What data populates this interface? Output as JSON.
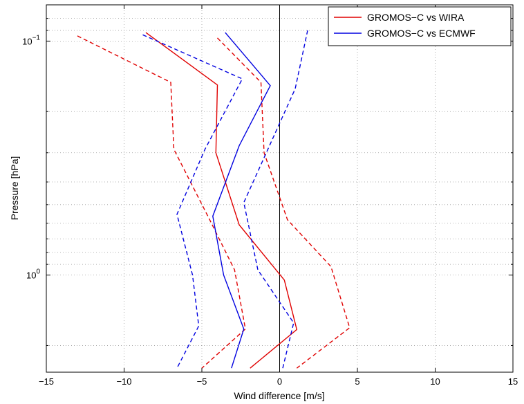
{
  "chart_data": {
    "type": "line",
    "xlabel": "Wind difference [m/s]",
    "ylabel": "Pressure [hPa]",
    "xlim": [
      -15,
      15
    ],
    "xticks": [
      -15,
      -10,
      -5,
      0,
      5,
      10,
      15
    ],
    "ylim": [
      0.07,
      2.6
    ],
    "yscale": "log",
    "y_direction": "reversed",
    "ytick_labels": [
      {
        "value": 0.1,
        "base": "10",
        "exp": "−1"
      },
      {
        "value": 1,
        "base": "10",
        "exp": "0"
      }
    ],
    "grid": true,
    "grid_style": "dotted",
    "zero_line": true,
    "legend": {
      "position": "top-right",
      "entries": [
        {
          "label": "GROMOS−C vs WIRA",
          "color": "#e00000"
        },
        {
          "label": "GROMOS−C vs ECMWF",
          "color": "#0000e0"
        }
      ]
    },
    "series": [
      {
        "name": "GROMOS−C vs WIRA",
        "role": "mean",
        "color": "#e00000",
        "style": "solid",
        "points": [
          [
            -8.6,
            0.092
          ],
          [
            -4.0,
            0.154
          ],
          [
            -4.1,
            0.3
          ],
          [
            -2.6,
            0.61
          ],
          [
            0.3,
            1.05
          ],
          [
            1.1,
            1.71
          ],
          [
            -1.9,
            2.5
          ]
        ]
      },
      {
        "name": "",
        "role": "lower",
        "color": "#e00000",
        "style": "dashed",
        "points": [
          [
            -13.0,
            0.095
          ],
          [
            -7.0,
            0.15
          ],
          [
            -6.8,
            0.29
          ],
          [
            -4.5,
            0.58
          ],
          [
            -2.9,
            0.95
          ],
          [
            -2.2,
            1.7
          ],
          [
            -5.0,
            2.5
          ]
        ]
      },
      {
        "name": "",
        "role": "upper",
        "color": "#e00000",
        "style": "dashed",
        "points": [
          [
            -4.0,
            0.097
          ],
          [
            -1.2,
            0.15
          ],
          [
            -1.0,
            0.3
          ],
          [
            0.5,
            0.58
          ],
          [
            3.3,
            0.92
          ],
          [
            4.5,
            1.68
          ],
          [
            1.1,
            2.5
          ]
        ]
      },
      {
        "name": "GROMOS−C vs ECMWF",
        "role": "mean",
        "color": "#0000e0",
        "style": "solid",
        "points": [
          [
            -3.5,
            0.092
          ],
          [
            -0.6,
            0.155
          ],
          [
            -2.6,
            0.28
          ],
          [
            -4.3,
            0.56
          ],
          [
            -3.6,
            1.0
          ],
          [
            -2.3,
            1.7
          ],
          [
            -3.1,
            2.5
          ]
        ]
      },
      {
        "name": "",
        "role": "lower",
        "color": "#0000e0",
        "style": "dashed",
        "points": [
          [
            -8.8,
            0.094
          ],
          [
            -2.4,
            0.145
          ],
          [
            -4.8,
            0.29
          ],
          [
            -6.6,
            0.55
          ],
          [
            -5.6,
            1.0
          ],
          [
            -5.2,
            1.65
          ],
          [
            -6.6,
            2.5
          ]
        ]
      },
      {
        "name": "",
        "role": "upper",
        "color": "#0000e0",
        "style": "dashed",
        "points": [
          [
            1.8,
            0.09
          ],
          [
            1.0,
            0.16
          ],
          [
            -2.3,
            0.49
          ],
          [
            -1.4,
            0.95
          ],
          [
            0.9,
            1.6
          ],
          [
            0.2,
            2.5
          ]
        ]
      }
    ]
  }
}
